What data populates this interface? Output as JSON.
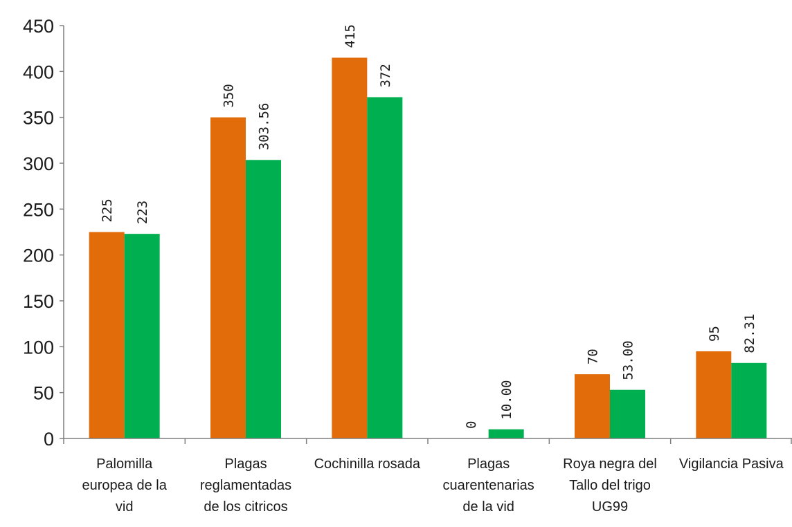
{
  "chart_data": {
    "type": "bar",
    "title": "",
    "xlabel": "",
    "ylabel": "",
    "ylim": [
      0,
      450
    ],
    "yticks": [
      0,
      50,
      100,
      150,
      200,
      250,
      300,
      350,
      400,
      450
    ],
    "grid": false,
    "legend": "none",
    "categories": [
      [
        "Palomilla",
        "europea de la",
        "vid"
      ],
      [
        "Plagas",
        "reglamentadas",
        "de los citricos"
      ],
      [
        "Cochinilla rosada"
      ],
      [
        "Plagas",
        "cuarentenarias",
        "de la vid"
      ],
      [
        "Roya negra del",
        "Tallo del trigo",
        "UG99"
      ],
      [
        "Vigilancia Pasiva"
      ]
    ],
    "series": [
      {
        "color": "#E36C0A",
        "values": [
          225,
          350,
          415,
          0,
          70,
          95
        ],
        "labels": [
          "225",
          "350",
          "415",
          "0",
          "70",
          "95"
        ]
      },
      {
        "color": "#00B050",
        "values": [
          223,
          303.56,
          372,
          10,
          53,
          82.31
        ],
        "labels": [
          "223",
          "303.56",
          "372",
          "10.00",
          "53.00",
          "82.31"
        ]
      }
    ]
  }
}
